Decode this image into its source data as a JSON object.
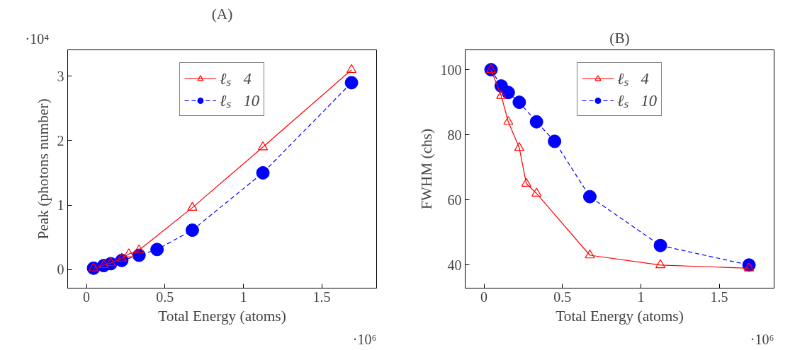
{
  "chart_data": [
    {
      "type": "line",
      "title": "(A)",
      "xlabel": "Total Energy (atoms)",
      "ylabel": "Peak (photons number)",
      "annotations": [
        "·10⁴",
        "·10⁶"
      ],
      "xlim": [
        -0.12,
        1.85
      ],
      "xticks": [
        0,
        0.5,
        1,
        1.5
      ],
      "ylim": [
        -0.29,
        3.41
      ],
      "yticks": [
        0,
        1,
        2,
        3
      ],
      "grid": false,
      "legend": "top",
      "series": [
        {
          "name": "ℓₛ   4",
          "color": "#ff0000",
          "marker": "triangle",
          "line_style": "solid",
          "x": [
            0.045,
            0.11,
            0.155,
            0.225,
            0.27,
            0.335,
            0.675,
            1.125,
            1.69
          ],
          "values": [
            0.02,
            0.07,
            0.1,
            0.17,
            0.24,
            0.3,
            0.96,
            1.9,
            3.1
          ]
        },
        {
          "name": "ℓₛ   10",
          "color": "#0000ff",
          "marker": "circle",
          "line_style": "dashed",
          "x": [
            0.045,
            0.11,
            0.155,
            0.225,
            0.335,
            0.45,
            0.675,
            1.125,
            1.69
          ],
          "values": [
            0.02,
            0.06,
            0.09,
            0.14,
            0.22,
            0.31,
            0.61,
            1.5,
            2.9
          ]
        }
      ]
    },
    {
      "type": "line",
      "title": "(B)",
      "xlabel": "Total Energy (atoms)",
      "ylabel": "FWHM (chs)",
      "annotations": [
        "·10⁶"
      ],
      "xlim": [
        -0.12,
        1.85
      ],
      "xticks": [
        0,
        0.5,
        1,
        1.5
      ],
      "ylim": [
        32.9,
        106.1
      ],
      "yticks": [
        40,
        60,
        80,
        100
      ],
      "grid": false,
      "legend": "top",
      "series": [
        {
          "name": "ℓₛ   4",
          "color": "#ff0000",
          "marker": "triangle",
          "line_style": "solid",
          "x": [
            0.045,
            0.11,
            0.155,
            0.225,
            0.27,
            0.335,
            0.675,
            1.125,
            1.69
          ],
          "values": [
            100,
            92,
            84,
            76,
            65,
            62,
            43,
            40,
            39
          ]
        },
        {
          "name": "ℓₛ   10",
          "color": "#0000ff",
          "marker": "circle",
          "line_style": "dashed",
          "x": [
            0.045,
            0.11,
            0.155,
            0.225,
            0.335,
            0.45,
            0.675,
            1.125,
            1.69
          ],
          "values": [
            100,
            95,
            93,
            90,
            84,
            78,
            61,
            46,
            40
          ]
        }
      ]
    }
  ]
}
